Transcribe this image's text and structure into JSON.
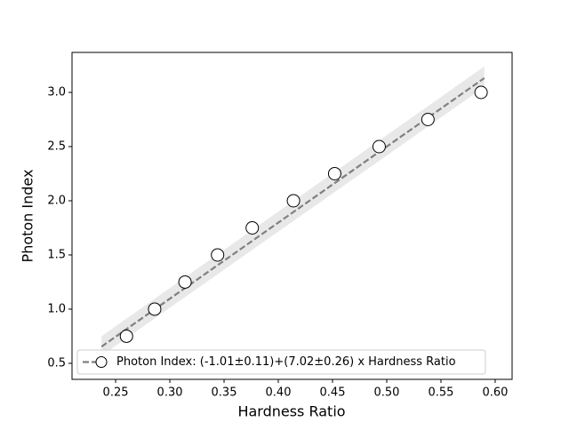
{
  "chart_data": {
    "type": "scatter",
    "x_label": "Hardness Ratio",
    "y_label": "Photon Index",
    "x": [
      0.26,
      0.286,
      0.314,
      0.344,
      0.376,
      0.414,
      0.452,
      0.493,
      0.538,
      0.587
    ],
    "values": [
      0.75,
      1.0,
      1.25,
      1.5,
      1.75,
      2.0,
      2.25,
      2.5,
      2.75,
      3.0
    ],
    "fit": {
      "name": "Photon Index: (-1.01±0.11)+(7.02±0.26) x Hardness Ratio",
      "color": "#808080",
      "x": [
        0.237,
        0.59
      ],
      "values": [
        0.654,
        3.132
      ],
      "band_lower": [
        0.57,
        3.05
      ],
      "band_upper": [
        0.75,
        3.24
      ]
    },
    "xlim": [
      0.2098,
      0.6156
    ],
    "ylim": [
      0.352,
      3.369
    ],
    "xticks": [
      0.25,
      {
        "value": 0.3,
        "label": "0.30"
      },
      0.35,
      {
        "value": 0.4,
        "label": "0.40"
      },
      0.45,
      {
        "value": 0.5,
        "label": "0.50"
      },
      0.55,
      {
        "value": 0.6,
        "label": "0.60"
      }
    ],
    "yticks": [
      0.5,
      {
        "value": 1,
        "label": "1.0"
      },
      1.5,
      {
        "value": 2,
        "label": "2.0"
      },
      2.5,
      {
        "value": 3,
        "label": "3.0"
      }
    ],
    "legend": "lower right"
  }
}
